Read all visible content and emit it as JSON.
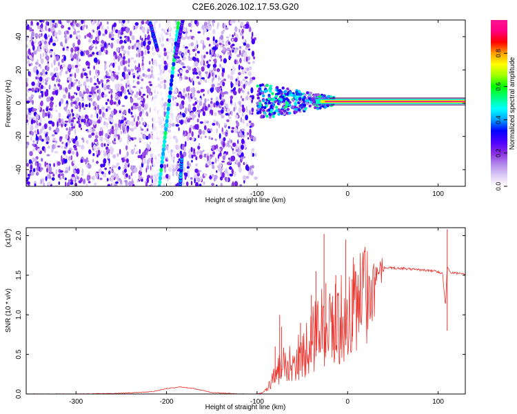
{
  "title": "C2E6.2026.102.17.53.G20",
  "colorbar": {
    "label": "Normalized spectral amplitude",
    "ticks": [
      0.0,
      0.2,
      0.4,
      0.6,
      0.8
    ],
    "tick_labels": [
      "0.0",
      "0.2",
      "0.4",
      "0.6",
      "0.8"
    ],
    "range": [
      0.0,
      1.0
    ],
    "colors": [
      "#ffffff",
      "#dccaf5",
      "#b088ea",
      "#8a2be2",
      "#4b00ff",
      "#0000ff",
      "#00a0ff",
      "#00ffff",
      "#00ff80",
      "#00ff00",
      "#a0ff00",
      "#ffff00",
      "#ffa000",
      "#ff0000",
      "#ff0080",
      "#ff1493"
    ]
  },
  "chart_data": [
    {
      "type": "heatmap",
      "title": "C2E6.2026.102.17.53.G20",
      "xlabel": "Height of straight line (km)",
      "ylabel": "Frequency (Hz)",
      "xlim": [
        -355,
        130
      ],
      "ylim": [
        -50,
        50
      ],
      "xticks": [
        -300,
        -200,
        -100,
        0,
        100
      ],
      "xtick_labels": [
        "-300",
        "-200",
        "-100",
        "0",
        "100"
      ],
      "yticks": [
        -40,
        -20,
        0,
        20,
        40
      ],
      "ytick_labels": [
        "-40",
        "-20",
        "0",
        "20",
        "40"
      ],
      "noise_region_x": [
        -355,
        -100
      ],
      "lines": [
        {
          "name": "left faint streak",
          "points": [
            [
              -218,
              48
            ],
            [
              -210,
              32
            ]
          ],
          "amplitude": 0.3
        },
        {
          "name": "main diagonal streak",
          "points": [
            [
              -208,
              -50
            ],
            [
              -187,
              48
            ]
          ],
          "amplitude": 0.45
        },
        {
          "name": "right streak",
          "points": [
            [
              -185,
              -50
            ],
            [
              -183,
              -32
            ]
          ],
          "amplitude": 0.35
        },
        {
          "name": "upper right streak",
          "points": [
            [
              -190,
              28
            ],
            [
              -182,
              50
            ]
          ],
          "amplitude": 0.25
        }
      ],
      "signal_band": {
        "center_hz": 1,
        "x_start": -100,
        "x_end": 130,
        "peak_amplitude": 0.98,
        "scatter_region_x": [
          -100,
          -40
        ]
      }
    },
    {
      "type": "line",
      "xlabel": "Height of straight line (km)",
      "ylabel": "SNR (10 * v/v)",
      "y_multiplier_label": "(x10",
      "y_multiplier_exponent": "4",
      "y_multiplier_suffix": ")",
      "xlim": [
        -355,
        130
      ],
      "ylim": [
        0,
        2.1
      ],
      "xticks": [
        -300,
        -200,
        -100,
        0,
        100
      ],
      "xtick_labels": [
        "-300",
        "-200",
        "-100",
        "0",
        "100"
      ],
      "yticks": [
        0.0,
        0.5,
        1.0,
        1.5,
        2.0
      ],
      "ytick_labels": [
        "0.0",
        "0.5",
        "1.0",
        "1.5",
        "2.0"
      ],
      "series": [
        {
          "name": "SNR",
          "color": "#e8302a",
          "x": [
            -355,
            -300,
            -250,
            -215,
            -200,
            -185,
            -170,
            -150,
            -120,
            -100,
            -90,
            -80,
            -70,
            -60,
            -50,
            -40,
            -30,
            -20,
            -10,
            0,
            10,
            20,
            30,
            40,
            60,
            80,
            100,
            105,
            108,
            110,
            115,
            130
          ],
          "y": [
            0.0,
            0.0,
            0.01,
            0.03,
            0.07,
            0.09,
            0.07,
            0.02,
            0.0,
            0.0,
            0.05,
            0.3,
            0.5,
            0.55,
            0.6,
            0.8,
            1.1,
            1.0,
            1.15,
            1.25,
            1.4,
            1.5,
            1.58,
            1.6,
            1.59,
            1.57,
            1.55,
            1.52,
            1.1,
            1.6,
            1.53,
            1.52
          ]
        }
      ],
      "spikes": [
        {
          "x": -80,
          "y": 0.6
        },
        {
          "x": -75,
          "y": 1.0
        },
        {
          "x": -73,
          "y": 0.85
        },
        {
          "x": -52,
          "y": 0.9
        },
        {
          "x": -40,
          "y": 1.25
        },
        {
          "x": -35,
          "y": 1.55
        },
        {
          "x": -26,
          "y": 2.02
        },
        {
          "x": -24,
          "y": 1.4
        },
        {
          "x": -13,
          "y": 1.5
        },
        {
          "x": -2,
          "y": 1.95
        },
        {
          "x": 5,
          "y": 1.45
        },
        {
          "x": 110,
          "y": 2.08
        }
      ]
    }
  ]
}
